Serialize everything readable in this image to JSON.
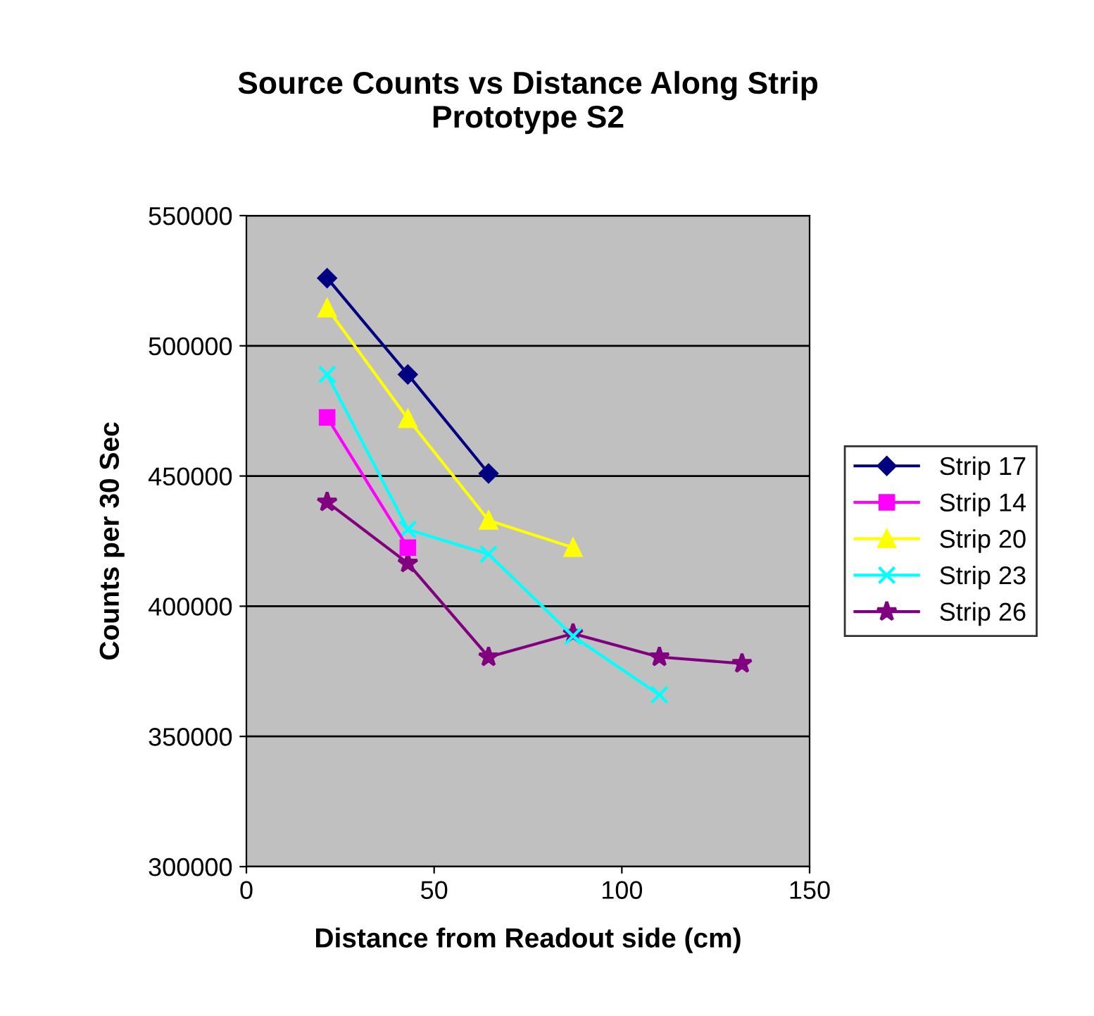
{
  "chart_data": {
    "type": "line",
    "title": "Source Counts vs Distance Along Strip\nPrototype S2",
    "xlabel": "Distance from Readout side (cm)",
    "ylabel": "Counts per 30 Sec",
    "xlim": [
      0,
      150
    ],
    "xticks": [
      0,
      50,
      100,
      150
    ],
    "ylim": [
      300000,
      550000
    ],
    "yticks": [
      300000,
      350000,
      400000,
      450000,
      500000,
      550000
    ],
    "grid": "y",
    "legend": "right",
    "series": [
      {
        "name": "Strip 17",
        "color": "#000080",
        "marker": "diamond",
        "x": [
          21.5,
          43,
          64.5
        ],
        "values": [
          526000,
          489000,
          451000
        ]
      },
      {
        "name": "Strip 14",
        "color": "#ff00ff",
        "marker": "square",
        "x": [
          21.5,
          43
        ],
        "values": [
          472500,
          422500
        ]
      },
      {
        "name": "Strip 20",
        "color": "#ffff00",
        "marker": "triangle",
        "x": [
          21.5,
          43,
          64.5,
          87
        ],
        "values": [
          514500,
          472000,
          433000,
          422500
        ]
      },
      {
        "name": "Strip 23",
        "color": "#00ffff",
        "marker": "cross",
        "x": [
          21.5,
          43,
          64.5,
          87,
          110
        ],
        "values": [
          489000,
          429500,
          420000,
          388500,
          366000
        ]
      },
      {
        "name": "Strip 26",
        "color": "#800080",
        "marker": "star",
        "x": [
          21.5,
          43,
          64.5,
          87,
          110,
          132
        ],
        "values": [
          440000,
          416500,
          380500,
          389500,
          380500,
          378000
        ]
      }
    ]
  }
}
